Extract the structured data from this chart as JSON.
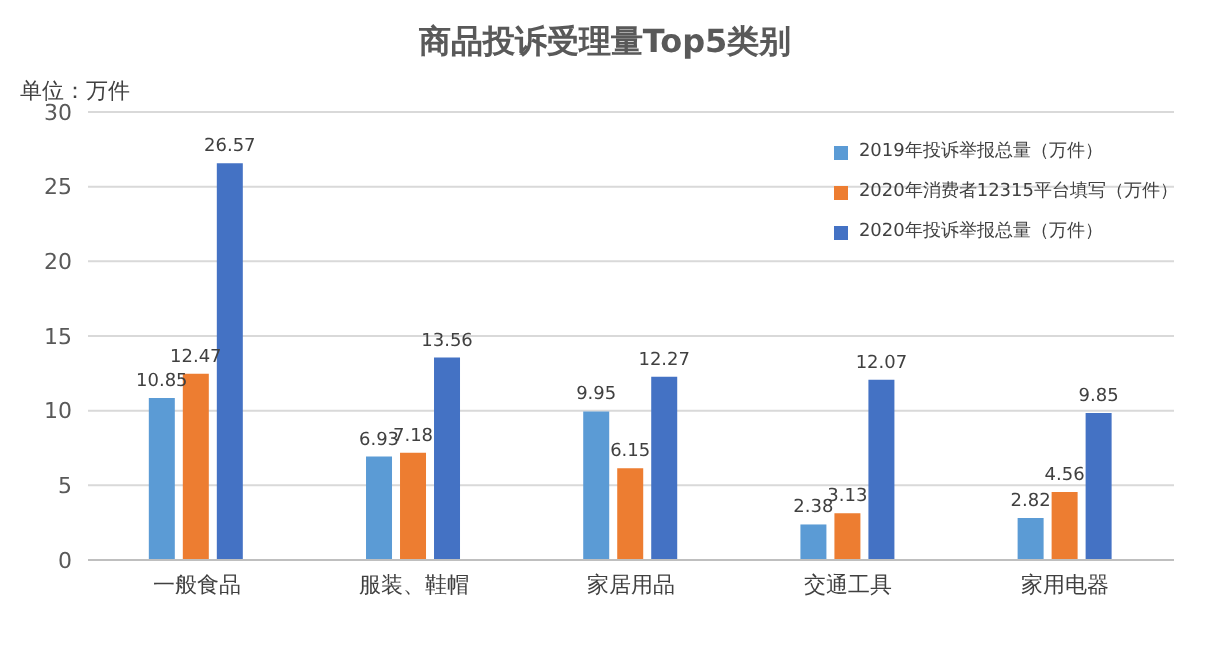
{
  "chart_data": {
    "type": "bar",
    "title": "商品投诉受理量Top5类别",
    "ylabel": "单位：万件",
    "categories": [
      "一般食品",
      "服装、鞋帽",
      "家居用品",
      "交通工具",
      "家用电器"
    ],
    "series": [
      {
        "name": "2019年投诉举报总量（万件）",
        "color": "#5b9bd5",
        "values": [
          10.85,
          6.93,
          9.95,
          2.38,
          2.82
        ]
      },
      {
        "name": "2020年消费者12315平台填写（万件）",
        "color": "#ed7d31",
        "values": [
          12.47,
          7.18,
          6.15,
          3.13,
          4.56
        ]
      },
      {
        "name": "2020年投诉举报总量（万件）",
        "color": "#4472c4",
        "values": [
          26.57,
          13.56,
          12.27,
          12.07,
          9.85
        ]
      }
    ],
    "ylim": [
      0,
      30
    ],
    "yticks": [
      0,
      5,
      10,
      15,
      20,
      25,
      30
    ],
    "grid": "y",
    "legend": "top right",
    "data_labels": true
  }
}
